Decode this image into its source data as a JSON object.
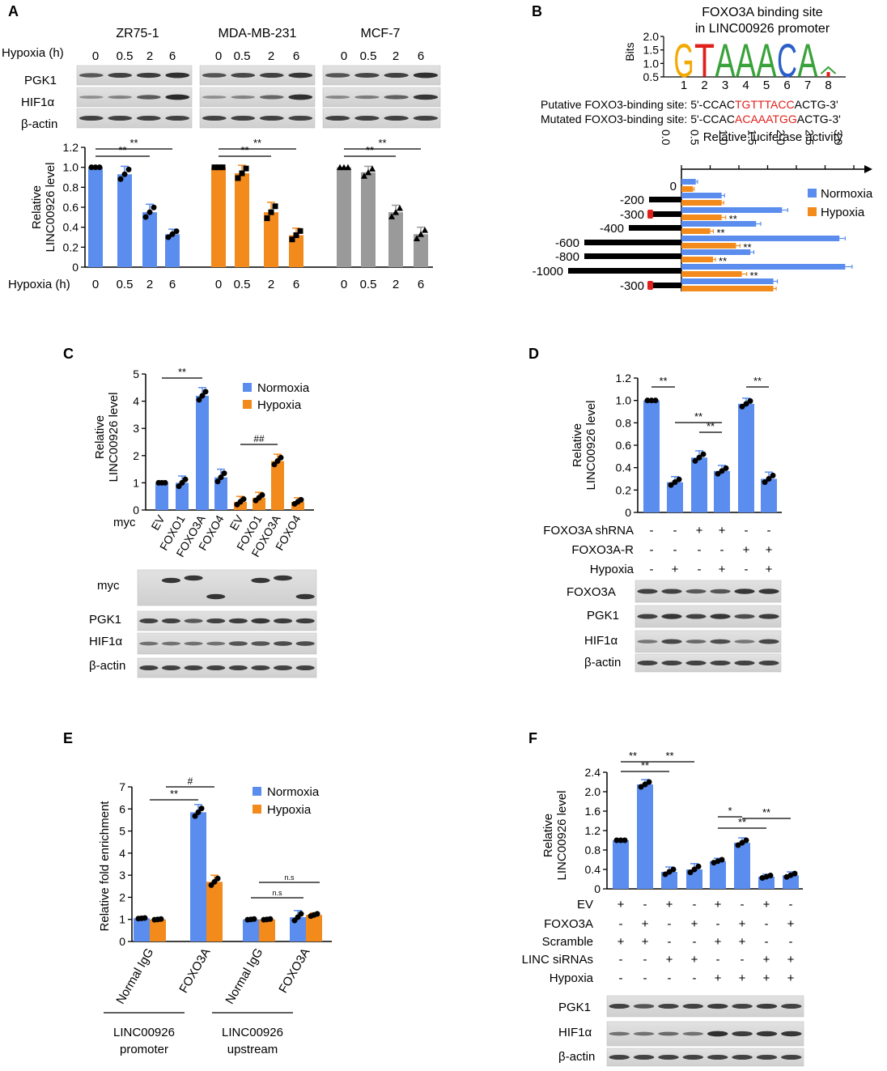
{
  "colors": {
    "blue": "#5b8def",
    "orange": "#f28a1c",
    "gray": "#9a9a9a",
    "red": "#e0201b"
  },
  "panels": {
    "A": {
      "label": "A",
      "hypoxia_label": "Hypoxia (h)",
      "groups": [
        {
          "name": "ZR75-1",
          "color": "blue",
          "marker": "circle",
          "times": [
            "0",
            "0.5",
            "2",
            "6"
          ],
          "values": [
            1.0,
            0.93,
            0.55,
            0.33
          ],
          "errors": [
            0.0,
            0.08,
            0.08,
            0.05
          ],
          "sig": [
            "**",
            "**"
          ]
        },
        {
          "name": "MDA-MB-231",
          "color": "orange",
          "marker": "square",
          "times": [
            "0",
            "0.5",
            "2",
            "6"
          ],
          "values": [
            1.0,
            0.94,
            0.55,
            0.32
          ],
          "errors": [
            0.0,
            0.08,
            0.1,
            0.07
          ],
          "sig": [
            "**",
            "**"
          ]
        },
        {
          "name": "MCF-7",
          "color": "gray",
          "marker": "triangle",
          "times": [
            "0",
            "0.5",
            "2",
            "6"
          ],
          "values": [
            1.0,
            0.95,
            0.55,
            0.33
          ],
          "errors": [
            0.0,
            0.06,
            0.07,
            0.07
          ],
          "sig": [
            "**",
            "**"
          ]
        }
      ],
      "blots": [
        "PGK1",
        "HIF1α",
        "β-actin"
      ],
      "ylabel": [
        "Relative",
        "LINC00926 level"
      ],
      "yticks": [
        "0",
        "0.2",
        "0.4",
        "0.6",
        "0.8",
        "1.0",
        "1.2"
      ],
      "ylim": [
        0,
        1.2
      ]
    },
    "B": {
      "label": "B",
      "title": [
        "FOXO3A binding site",
        "in LINC00926 promoter"
      ],
      "logo_ylabel": "Bits",
      "logo_yticks": [
        "0.5",
        "1.0",
        "1.5",
        "2.0"
      ],
      "logo_letters": [
        "G",
        "T",
        "A",
        "A",
        "A",
        "C",
        "A",
        ""
      ],
      "logo_positions": [
        "1",
        "2",
        "3",
        "4",
        "5",
        "6",
        "7",
        "8"
      ],
      "seq_putative": {
        "prefix": "Putative FOXO3-binding site: 5'-CCAC",
        "site": "TGTTTACC",
        "suffix": "ACTG-3'"
      },
      "seq_mutated": {
        "prefix": "Mutated FOXO3-binding site: 5'-CCAC",
        "site": "ACAAATGG",
        "suffix": "ACTG-3'"
      },
      "xlabel": "Relative luciferase activity",
      "xticks": [
        "0.0",
        "0.5",
        "1.0",
        "1.5",
        "2.0",
        "2.5",
        "3.0"
      ],
      "xlim": [
        0,
        3.0
      ],
      "constructs": [
        "0",
        "-200",
        "-300",
        "-400",
        "-600",
        "-800",
        "-1000",
        "-300"
      ],
      "normoxia": [
        0.25,
        0.7,
        1.75,
        1.3,
        2.75,
        1.2,
        2.85,
        1.6
      ],
      "hypoxia": [
        0.2,
        0.7,
        0.7,
        0.5,
        0.95,
        0.55,
        1.05,
        1.6
      ],
      "errors": [
        0.03,
        0.05,
        0.1,
        0.08,
        0.1,
        0.06,
        0.12,
        0.07
      ],
      "sig": [
        "",
        "",
        "**",
        "**",
        "**",
        "**",
        "**",
        ""
      ],
      "legend": [
        "Normoxia",
        "Hypoxia"
      ]
    },
    "C": {
      "label": "C",
      "ylabel": [
        "Relative",
        "LINC00926 level"
      ],
      "yticks": [
        "0",
        "1",
        "2",
        "3",
        "4",
        "5"
      ],
      "ylim": [
        0,
        5
      ],
      "categories": [
        "EV",
        "FOXO1",
        "FOXO3A",
        "FOXO4",
        "EV",
        "FOXO1",
        "FOXO3A",
        "FOXO4"
      ],
      "values": [
        1.0,
        1.0,
        4.2,
        1.2,
        0.3,
        0.45,
        1.8,
        0.3
      ],
      "errors": [
        0.0,
        0.25,
        0.3,
        0.3,
        0.2,
        0.2,
        0.25,
        0.15
      ],
      "bar_colors": [
        "blue",
        "blue",
        "blue",
        "blue",
        "orange",
        "orange",
        "orange",
        "orange"
      ],
      "legend": [
        "Normoxia",
        "Hypoxia"
      ],
      "sig": [
        "**",
        "##"
      ],
      "row_label": "myc",
      "blots": [
        "myc",
        "PGK1",
        "HIF1α",
        "β-actin"
      ]
    },
    "D": {
      "label": "D",
      "ylabel": [
        "Relative",
        "LINC00926 level"
      ],
      "yticks": [
        "0",
        "0.2",
        "0.4",
        "0.6",
        "0.8",
        "1.0",
        "1.2"
      ],
      "ylim": [
        0,
        1.2
      ],
      "values": [
        1.0,
        0.27,
        0.49,
        0.37,
        0.97,
        0.3
      ],
      "errors": [
        0.0,
        0.05,
        0.06,
        0.05,
        0.05,
        0.06
      ],
      "sig": [
        "**",
        "**",
        "**",
        "**"
      ],
      "rows": [
        {
          "label": "FOXO3A shRNA",
          "signs": [
            "-",
            "-",
            "+",
            "+",
            "-",
            "-"
          ]
        },
        {
          "label": "FOXO3A-R",
          "signs": [
            "-",
            "-",
            "-",
            "-",
            "+",
            "+"
          ]
        },
        {
          "label": "Hypoxia",
          "signs": [
            "-",
            "+",
            "-",
            "+",
            "-",
            "+"
          ]
        }
      ],
      "blots": [
        "FOXO3A",
        "PGK1",
        "HIF1α",
        "β-actin"
      ]
    },
    "E": {
      "label": "E",
      "ylabel": "Relative fold enrichment",
      "yticks": [
        "0",
        "1",
        "2",
        "3",
        "4",
        "5",
        "6",
        "7"
      ],
      "ylim": [
        0,
        7
      ],
      "categories": [
        "Normal IgG",
        "FOXO3A",
        "Normal IgG",
        "FOXO3A"
      ],
      "normoxia": [
        1.05,
        5.85,
        1.0,
        1.1
      ],
      "hypoxia": [
        1.0,
        2.7,
        1.0,
        1.2
      ],
      "errors": [
        0.03,
        0.35,
        0.03,
        0.3
      ],
      "errors_h": [
        0.03,
        0.3,
        0.03,
        0.1
      ],
      "legend": [
        "Normoxia",
        "Hypoxia"
      ],
      "sig": [
        "**",
        "#",
        "n.s",
        "n.s"
      ],
      "groups": [
        [
          "LINC00926",
          "promoter"
        ],
        [
          "LINC00926",
          "upstream"
        ]
      ]
    },
    "F": {
      "label": "F",
      "ylabel": [
        "Relative",
        "LINC00926 level"
      ],
      "yticks": [
        "0",
        "0.4",
        "0.8",
        "1.2",
        "1.6",
        "2.0",
        "2.4"
      ],
      "ylim": [
        0,
        2.4
      ],
      "values": [
        1.0,
        2.15,
        0.35,
        0.4,
        0.57,
        0.95,
        0.25,
        0.28
      ],
      "errors": [
        0.0,
        0.1,
        0.1,
        0.12,
        0.06,
        0.1,
        0.05,
        0.07
      ],
      "sig": [
        "**",
        "**",
        "**",
        "*",
        "**",
        "**"
      ],
      "rows": [
        {
          "label": "EV",
          "signs": [
            "+",
            "-",
            "+",
            "-",
            "+",
            "-",
            "+",
            "-"
          ]
        },
        {
          "label": "FOXO3A",
          "signs": [
            "-",
            "+",
            "-",
            "+",
            "-",
            "+",
            "-",
            "+"
          ]
        },
        {
          "label": "Scramble",
          "signs": [
            "+",
            "+",
            "-",
            "-",
            "+",
            "+",
            "-",
            "-"
          ]
        },
        {
          "label": "LINC siRNAs",
          "signs": [
            "-",
            "-",
            "+",
            "+",
            "-",
            "-",
            "+",
            "+"
          ]
        },
        {
          "label": "Hypoxia",
          "signs": [
            "-",
            "-",
            "-",
            "-",
            "+",
            "+",
            "+",
            "+"
          ]
        }
      ],
      "blots": [
        "PGK1",
        "HIF1α",
        "β-actin"
      ]
    }
  }
}
